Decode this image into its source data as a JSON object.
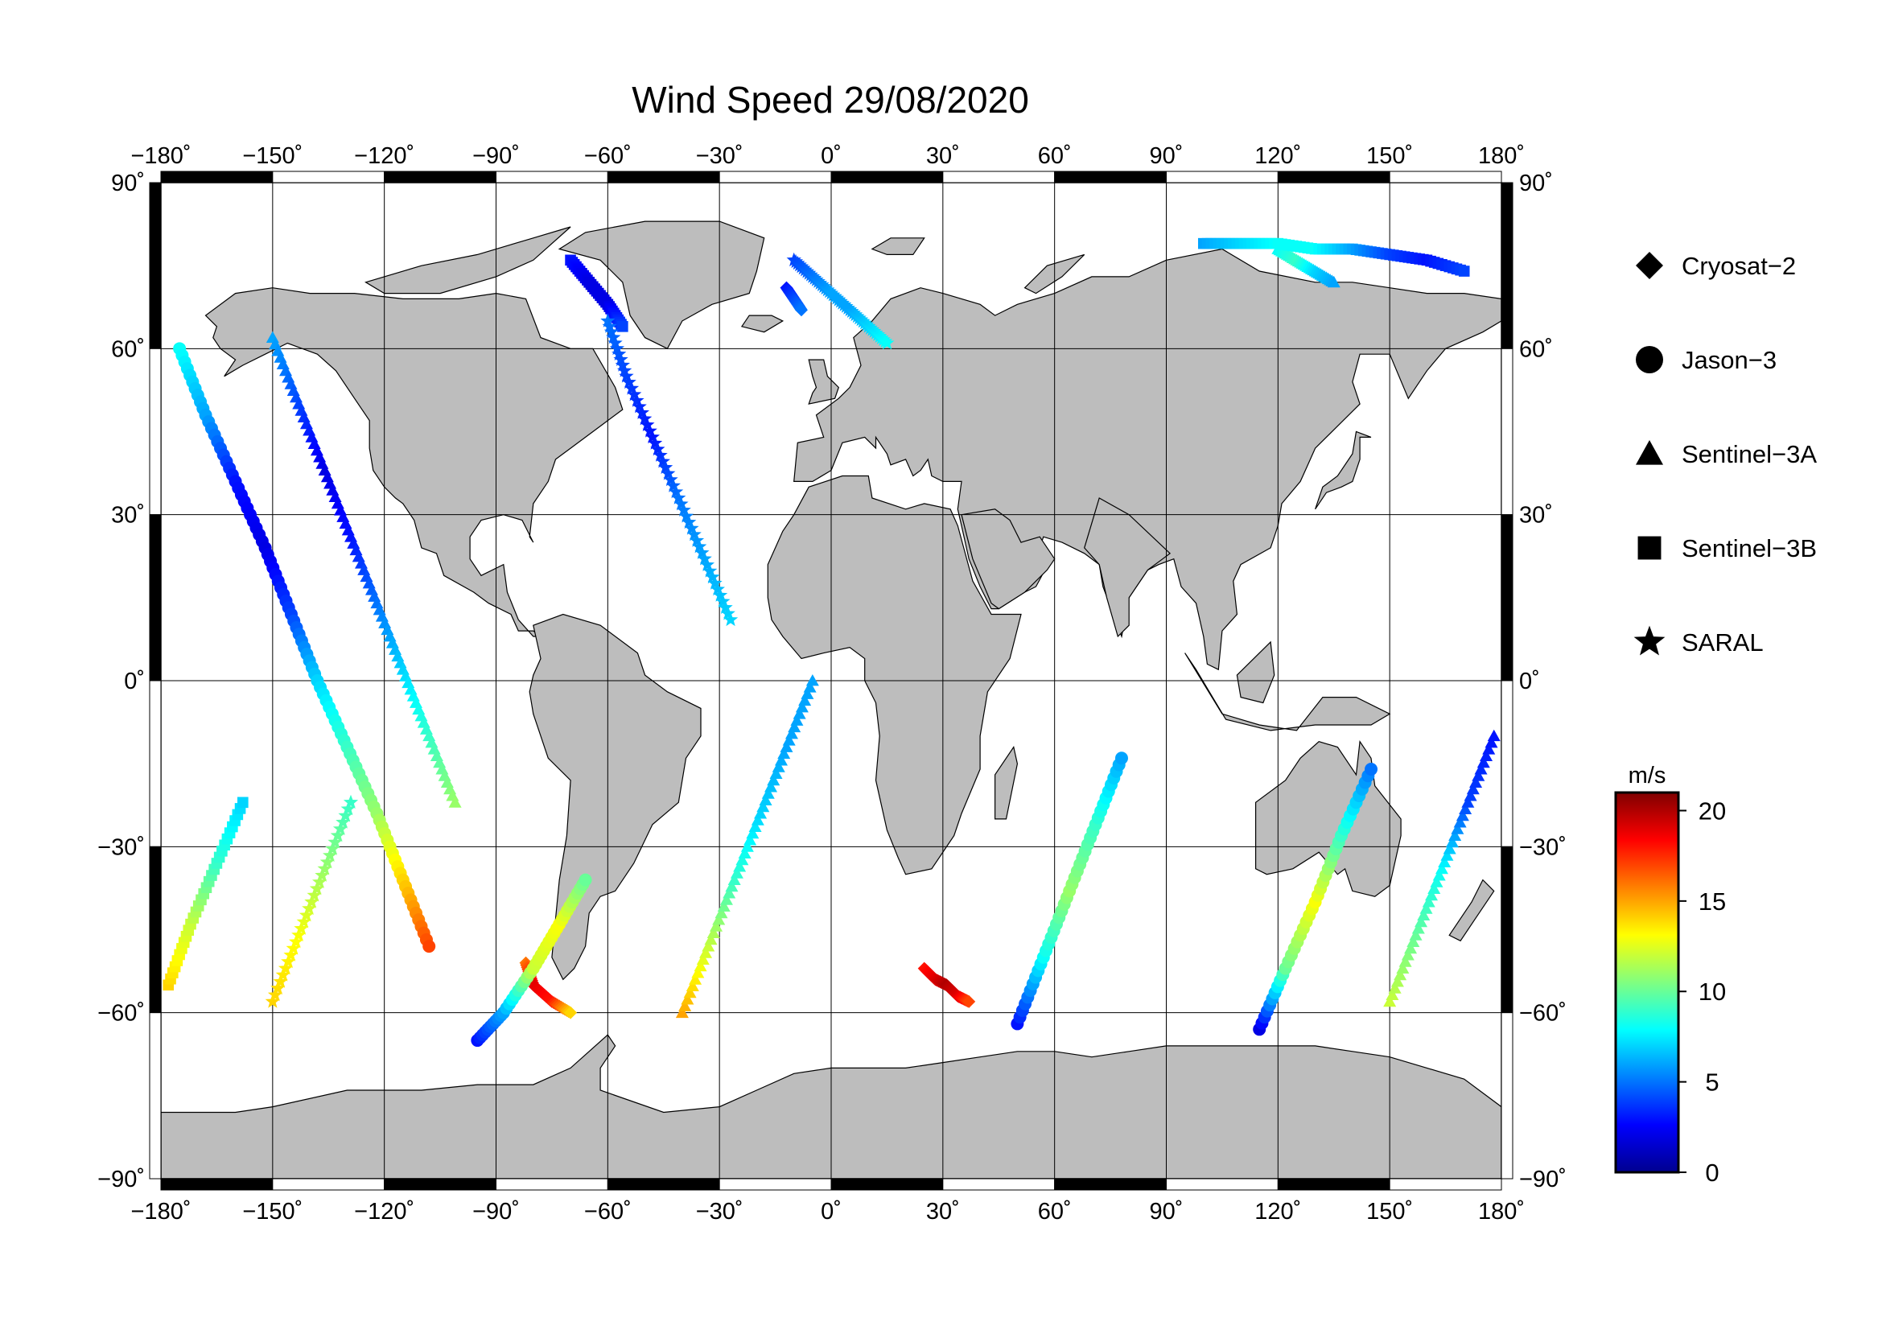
{
  "title": "Wind Speed 29/08/2020",
  "map": {
    "lon_ticks": [
      -180,
      -150,
      -120,
      -90,
      -60,
      -30,
      0,
      30,
      60,
      90,
      120,
      150,
      180
    ],
    "lat_ticks": [
      90,
      60,
      30,
      0,
      -30,
      -60,
      -90
    ],
    "degree_symbol": "˚",
    "land_color": "#bdbdbd",
    "ocean_color": "#ffffff",
    "frame_color": "#000000"
  },
  "legend": {
    "items": [
      {
        "label": "Cryosat−2",
        "symbol": "diamond"
      },
      {
        "label": "Jason−3",
        "symbol": "circle"
      },
      {
        "label": "Sentinel−3A",
        "symbol": "triangle"
      },
      {
        "label": "Sentinel−3B",
        "symbol": "square"
      },
      {
        "label": "SARAL",
        "symbol": "star"
      }
    ]
  },
  "colorbar": {
    "unit": "m/s",
    "min": 0,
    "max": 21,
    "ticks": [
      0,
      5,
      10,
      15,
      20
    ],
    "colors": [
      "#00008f",
      "#0000ff",
      "#0080ff",
      "#00ffff",
      "#80ff80",
      "#ffff00",
      "#ff8000",
      "#ff0000",
      "#800000"
    ]
  },
  "chart_data": {
    "type": "scatter",
    "title": "Wind Speed 29/08/2020",
    "xlim": [
      -180,
      180
    ],
    "ylim": [
      -90,
      90
    ],
    "value_unit": "m/s",
    "value_range": [
      0,
      21
    ],
    "series": [
      {
        "name": "Cryosat−2",
        "marker": "diamond",
        "tracks": [
          {
            "lon": [
              -82,
              -80,
              -75,
              -70
            ],
            "lat": [
              -51,
              -55,
              -58,
              -60
            ],
            "speed": [
              16,
              19,
              18,
              14
            ]
          },
          {
            "lon": [
              25,
              28,
              31,
              34,
              37
            ],
            "lat": [
              -52,
              -54,
              -55,
              -57,
              -58
            ],
            "speed": [
              18,
              19,
              20,
              19,
              17
            ]
          },
          {
            "lon": [
              -12,
              -10,
              -8
            ],
            "lat": [
              71,
              69,
              67
            ],
            "speed": [
              3,
              4,
              5
            ]
          }
        ]
      },
      {
        "name": "Jason−3",
        "marker": "circle",
        "tracks": [
          {
            "lon": [
              -175,
              -168,
              -160,
              -152,
              -145,
              -138,
              -130,
              -122,
              -115,
              -108
            ],
            "lat": [
              60,
              48,
              36,
              24,
              12,
              0,
              -12,
              -24,
              -36,
              -48
            ],
            "speed": [
              8,
              6,
              3,
              2,
              4,
              7,
              9,
              11,
              14,
              17
            ]
          },
          {
            "lon": [
              -95,
              -88,
              -80,
              -73,
              -66
            ],
            "lat": [
              -65,
              -60,
              -52,
              -44,
              -36
            ],
            "speed": [
              3,
              6,
              12,
              13,
              10
            ]
          },
          {
            "lon": [
              50,
              57,
              64,
              71,
              78
            ],
            "lat": [
              -62,
              -50,
              -38,
              -26,
              -14
            ],
            "speed": [
              3,
              8,
              11,
              9,
              6
            ]
          },
          {
            "lon": [
              115,
              122,
              130,
              137,
              145
            ],
            "lat": [
              -63,
              -52,
              -40,
              -28,
              -16
            ],
            "speed": [
              2,
              10,
              13,
              9,
              5
            ]
          }
        ]
      },
      {
        "name": "Sentinel−3A",
        "marker": "triangle",
        "tracks": [
          {
            "lon": [
              -150,
              -143,
              -136,
              -129,
              -122,
              -115,
              -108,
              -101
            ],
            "lat": [
              62,
              50,
              38,
              26,
              14,
              2,
              -10,
              -22
            ],
            "speed": [
              6,
              4,
              2,
              3,
              5,
              7,
              9,
              11
            ]
          },
          {
            "lon": [
              -40,
              -33,
              -26,
              -19,
              -12,
              -5
            ],
            "lat": [
              -60,
              -48,
              -36,
              -24,
              -12,
              0
            ],
            "speed": [
              15,
              12,
              9,
              7,
              6,
              6
            ]
          },
          {
            "lon": [
              150,
              157,
              164,
              171,
              178
            ],
            "lat": [
              -58,
              -46,
              -34,
              -22,
              -10
            ],
            "speed": [
              12,
              10,
              8,
              4,
              3
            ]
          },
          {
            "lon": [
              120,
              125,
              130,
              135
            ],
            "lat": [
              78,
              76,
              74,
              72
            ],
            "speed": [
              8,
              9,
              7,
              6
            ]
          }
        ]
      },
      {
        "name": "Sentinel−3B",
        "marker": "square",
        "tracks": [
          {
            "lon": [
              -70,
              -65,
              -60,
              -56
            ],
            "lat": [
              76,
              72,
              68,
              64
            ],
            "speed": [
              3,
              2,
              2,
              4
            ]
          },
          {
            "lon": [
              100,
              110,
              120,
              130,
              140,
              150,
              160,
              170
            ],
            "lat": [
              79,
              79,
              79,
              78,
              78,
              77,
              76,
              74
            ],
            "speed": [
              6,
              7,
              8,
              8,
              6,
              4,
              3,
              4
            ]
          },
          {
            "lon": [
              -178,
              -172,
              -165,
              -158
            ],
            "lat": [
              -55,
              -44,
              -33,
              -22
            ],
            "speed": [
              14,
              12,
              9,
              7
            ]
          }
        ]
      },
      {
        "name": "SARAL",
        "marker": "star",
        "tracks": [
          {
            "lon": [
              -10,
              -5,
              0,
              5,
              10,
              15
            ],
            "lat": [
              76,
              73,
              70,
              67,
              64,
              61
            ],
            "speed": [
              4,
              5,
              6,
              6,
              7,
              8
            ]
          },
          {
            "lon": [
              -60,
              -55,
              -48,
              -41,
              -34,
              -27
            ],
            "lat": [
              65,
              55,
              44,
              33,
              22,
              11
            ],
            "speed": [
              5,
              4,
              3,
              5,
              6,
              7
            ]
          },
          {
            "lon": [
              -150,
              -143,
              -136,
              -129
            ],
            "lat": [
              -58,
              -46,
              -34,
              -22
            ],
            "speed": [
              14,
              13,
              11,
              9
            ]
          }
        ]
      }
    ]
  }
}
